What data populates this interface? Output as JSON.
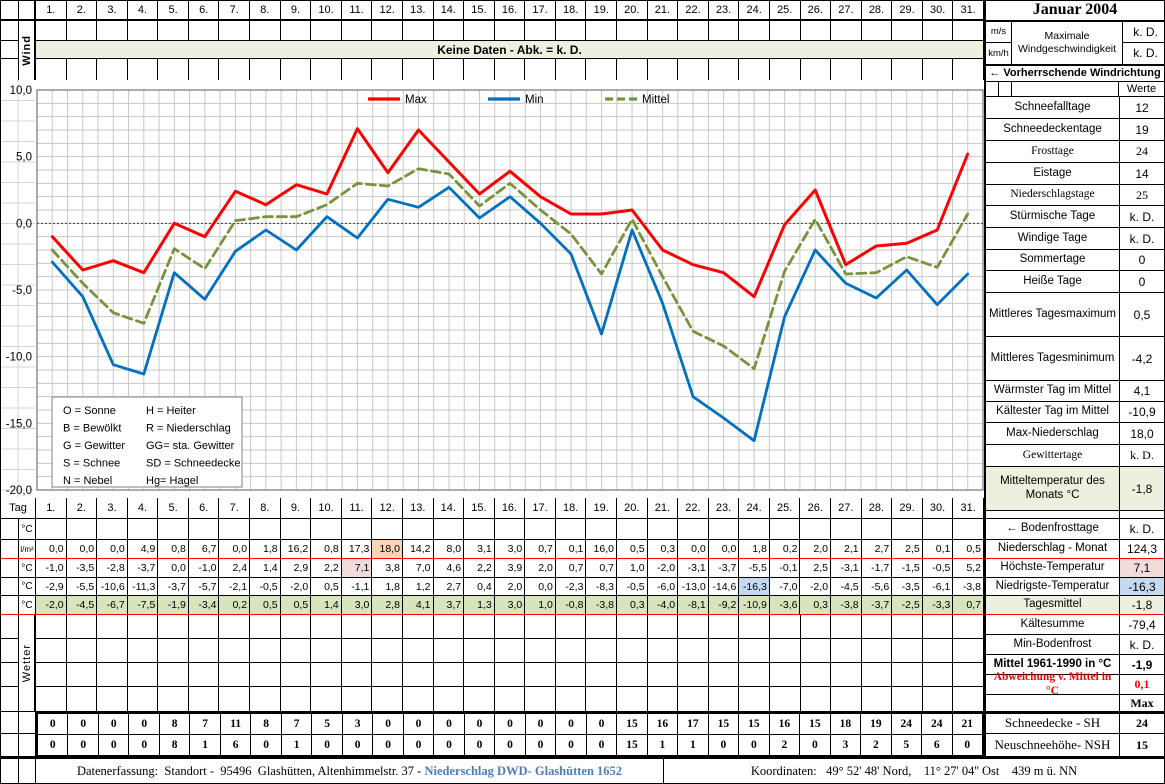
{
  "month_title": "Januar 2004",
  "days": [
    "1.",
    "2.",
    "3.",
    "4.",
    "5.",
    "6.",
    "7.",
    "8.",
    "9.",
    "10.",
    "11.",
    "12.",
    "13.",
    "14.",
    "15.",
    "16.",
    "17.",
    "18.",
    "19.",
    "20.",
    "21.",
    "22.",
    "23.",
    "24.",
    "25.",
    "26.",
    "27.",
    "28.",
    "29.",
    "30.",
    "31."
  ],
  "top": {
    "wind_label": "Wind",
    "no_data_banner": "Keine Daten - Abk. = k. D.",
    "wind_speed_units": [
      "m/s",
      "km/h"
    ],
    "wind_speed_label": "Maximale Windgeschwindigkeit",
    "wind_speed_values": [
      "k. D.",
      "k. D."
    ],
    "wind_direction_label": "← Vorherrschende Windrichtung",
    "werte_header": "Werte"
  },
  "chart": {
    "y_ticks": [
      "10,0",
      "5,0",
      "0,0",
      "-5,0",
      "-10,0",
      "-15,0",
      "-20,0"
    ],
    "legend": [
      {
        "label": "Max",
        "color": "#FF0000",
        "dashed": false
      },
      {
        "label": "Min",
        "color": "#0070C0",
        "dashed": false
      },
      {
        "label": "Mittel",
        "color": "#77933C",
        "dashed": true
      }
    ],
    "weather_key": {
      "col1": [
        "O = Sonne",
        "B = Bewölkt",
        "G = Gewitter",
        "S = Schnee",
        "N = Nebel"
      ],
      "col2": [
        "H = Heiter",
        "R = Niederschlag",
        "GG= sta. Gewitter",
        "SD = Schneedecke",
        "Hg= Hagel"
      ]
    }
  },
  "chart_data": {
    "type": "line",
    "x": [
      1,
      2,
      3,
      4,
      5,
      6,
      7,
      8,
      9,
      10,
      11,
      12,
      13,
      14,
      15,
      16,
      17,
      18,
      19,
      20,
      21,
      22,
      23,
      24,
      25,
      26,
      27,
      28,
      29,
      30,
      31
    ],
    "xlabel": "Tag",
    "ylabel": "°C",
    "ylim": [
      -20,
      10
    ],
    "y_tick_step": 5,
    "grid": true,
    "legend_position": "top",
    "series": [
      {
        "name": "Max",
        "color": "#FF0000",
        "style": "solid",
        "values": [
          -1.0,
          -3.5,
          -2.8,
          -3.7,
          0.0,
          -1.0,
          2.4,
          1.4,
          2.9,
          2.2,
          7.1,
          3.8,
          7.0,
          4.6,
          2.2,
          3.9,
          2.0,
          0.7,
          0.7,
          1.0,
          -2.0,
          -3.1,
          -3.7,
          -5.5,
          -0.1,
          2.5,
          -3.1,
          -1.7,
          -1.5,
          -0.5,
          5.2
        ]
      },
      {
        "name": "Min",
        "color": "#0070C0",
        "style": "solid",
        "values": [
          -2.9,
          -5.5,
          -10.6,
          -11.3,
          -3.7,
          -5.7,
          -2.1,
          -0.5,
          -2.0,
          0.5,
          -1.1,
          1.8,
          1.2,
          2.7,
          0.4,
          2.0,
          0.0,
          -2.3,
          -8.3,
          -0.5,
          -6.0,
          -13.0,
          -14.6,
          -16.3,
          -7.0,
          -2.0,
          -4.5,
          -5.6,
          -3.5,
          -6.1,
          -3.8
        ]
      },
      {
        "name": "Mittel",
        "color": "#77933C",
        "style": "dashed",
        "values": [
          -2.0,
          -4.5,
          -6.7,
          -7.5,
          -1.9,
          -3.4,
          0.2,
          0.5,
          0.5,
          1.4,
          3.0,
          2.8,
          4.1,
          3.7,
          1.3,
          3.0,
          1.0,
          -0.8,
          -3.8,
          0.3,
          -4.0,
          -8.1,
          -9.2,
          -10.9,
          -3.6,
          0.3,
          -3.8,
          -3.7,
          -2.5,
          -3.3,
          0.7
        ]
      }
    ]
  },
  "table": {
    "tag_label": "Tag",
    "wetter_label": "Wetter",
    "rows": [
      {
        "unit": "°C",
        "series": null
      },
      {
        "unit": "l/m²",
        "series": "Niederschlag",
        "highlight_day": 12,
        "highlight_color": "#FBD4B4",
        "red_line_below": true
      },
      {
        "unit": "°C",
        "series": "Max",
        "highlight_day": 11,
        "highlight_color": "#F2DCDB"
      },
      {
        "unit": "°C",
        "series": "Min",
        "highlight_day": 24,
        "highlight_color": "#C5D9F1"
      },
      {
        "unit": "°C",
        "series": "Mittel",
        "row_bg": "#D7E4BC",
        "red_line_below": true
      }
    ],
    "niederschlag_values": [
      0.0,
      0.0,
      0.0,
      4.9,
      0.8,
      6.7,
      0.0,
      1.8,
      16.2,
      0.8,
      17.3,
      18.0,
      14.2,
      8.0,
      3.1,
      3.0,
      0.7,
      0.1,
      16.0,
      0.5,
      0.3,
      0.0,
      0.0,
      1.8,
      0.2,
      2.0,
      2.1,
      2.7,
      2.5,
      0.1,
      0.5
    ],
    "schneedecke_values": [
      0,
      0,
      0,
      0,
      8,
      7,
      11,
      8,
      7,
      5,
      3,
      0,
      0,
      0,
      0,
      0,
      0,
      0,
      0,
      15,
      16,
      17,
      15,
      15,
      16,
      15,
      18,
      19,
      24,
      24,
      21
    ],
    "neuschnee_values": [
      0,
      0,
      0,
      0,
      8,
      1,
      6,
      0,
      1,
      0,
      0,
      0,
      0,
      0,
      0,
      0,
      0,
      0,
      0,
      15,
      1,
      1,
      0,
      0,
      2,
      0,
      3,
      2,
      5,
      6,
      0
    ]
  },
  "right_panel": {
    "stats": [
      {
        "label": "Schneefalltage",
        "value": "12"
      },
      {
        "label": "Schneedeckentage",
        "value": "19"
      },
      {
        "label": "Frosttage",
        "value": "24",
        "serif": true
      },
      {
        "label": "Eistage",
        "value": "14"
      },
      {
        "label": "Niederschlagstage",
        "value": "25",
        "serif": true
      },
      {
        "label": "Stürmische Tage",
        "value": "k. D."
      },
      {
        "label": "Windige Tage",
        "value": "k. D."
      },
      {
        "label": "Sommertage",
        "value": "0"
      },
      {
        "label": "Heiße Tage",
        "value": "0"
      },
      {
        "label": "Mittleres Tagesmaximum",
        "value": "0,5"
      },
      {
        "label": "Mittleres Tagesminimum",
        "value": "-4,2"
      },
      {
        "label": "Wärmster Tag im Mittel",
        "value": "4,1"
      },
      {
        "label": "Kältester Tag im Mittel",
        "value": "-10,9"
      },
      {
        "label": "Max-Niederschlag",
        "value": "18,0"
      },
      {
        "label": "Gewittertage",
        "value": "k. D.",
        "serif": true
      },
      {
        "label": "Mitteltemperatur des Monats °C",
        "value": "-1,8",
        "bg": "#EBF1DE"
      },
      {
        "label": "",
        "value": "",
        "spacer": true
      },
      {
        "label": "← Bodenfrosttage",
        "value": "k. D."
      },
      {
        "label": "Niederschlag - Monat",
        "value": "124,3",
        "red_below": true
      },
      {
        "label": "Höchste-Temperatur",
        "value": "7,1",
        "value_bg": "#F2DCDB"
      },
      {
        "label": "Niedrigste-Temperatur",
        "value": "-16,3",
        "value_bg": "#C5D9F1"
      },
      {
        "label": "Tagesmittel",
        "value": "-1,8",
        "bg": "#EBF1DE",
        "red_below": true
      },
      {
        "label": "Kältesumme",
        "value": "-79,4"
      },
      {
        "label": "Min-Bodenfrost",
        "value": "k. D."
      },
      {
        "label": "Mittel 1961-1990 in °C",
        "value": "-1,9",
        "bold": true
      },
      {
        "label": "Abweichung v. Mittel in °C",
        "value": "0,1",
        "red": true,
        "serif": true
      },
      {
        "label": "",
        "value": "Max",
        "serif": true,
        "bold": true
      },
      {
        "label": "Schneedecke -  SH",
        "value": "24",
        "serif": true,
        "big": true,
        "bold_value": true,
        "thick_top": true
      },
      {
        "label": "Neuschneehöhe- NSH",
        "value": "15",
        "serif": true,
        "big": true,
        "bold_value": true
      }
    ]
  },
  "footer": {
    "left_prefix": "Datenerfassung:  Standort -  95496  Glashütten, Altenhimmelstr. 37 - ",
    "left_link": "Niederschlag DWD- Glashütten 1652",
    "right_text": "Koordinaten:   49° 52' 48' Nord,    11° 27' 04'' Ost    439 m ü. NN"
  }
}
